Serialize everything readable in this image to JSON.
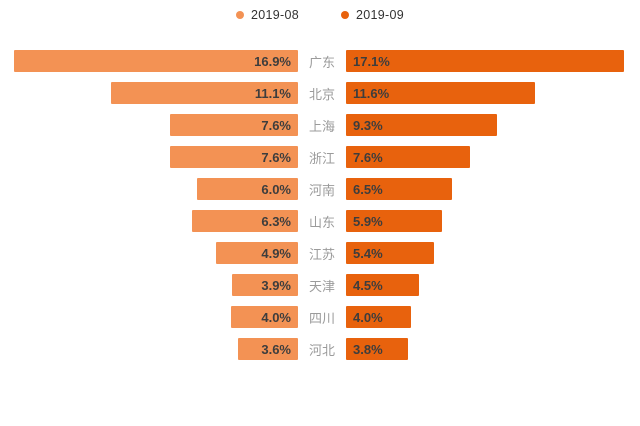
{
  "chart_data": {
    "type": "bar",
    "layout": "tornado",
    "grid": false,
    "legend_position": "top",
    "categories": [
      "广东",
      "北京",
      "上海",
      "浙江",
      "河南",
      "山东",
      "江苏",
      "天津",
      "四川",
      "河北"
    ],
    "series": [
      {
        "name": "2019-08",
        "side": "left",
        "color": "#F39254",
        "values": [
          16.9,
          11.1,
          7.6,
          7.6,
          6.0,
          6.3,
          4.9,
          3.9,
          4.0,
          3.6
        ],
        "labels": [
          "16.9%",
          "11.1%",
          "7.6%",
          "7.6%",
          "6.0%",
          "6.3%",
          "4.9%",
          "3.9%",
          "4.0%",
          "3.6%"
        ]
      },
      {
        "name": "2019-09",
        "side": "right",
        "color": "#E8620D",
        "values": [
          17.1,
          11.6,
          9.3,
          7.6,
          6.5,
          5.9,
          5.4,
          4.5,
          4.0,
          3.8
        ],
        "labels": [
          "17.1%",
          "11.6%",
          "9.3%",
          "7.6%",
          "6.5%",
          "5.9%",
          "5.4%",
          "4.5%",
          "4.0%",
          "3.8%"
        ]
      }
    ],
    "axis": {
      "left_max": 16.9,
      "right_max": 17.1
    },
    "colors": {
      "value_text": "#3d3d3d",
      "category_text": "#9b9b9b",
      "background": "#ffffff"
    }
  }
}
